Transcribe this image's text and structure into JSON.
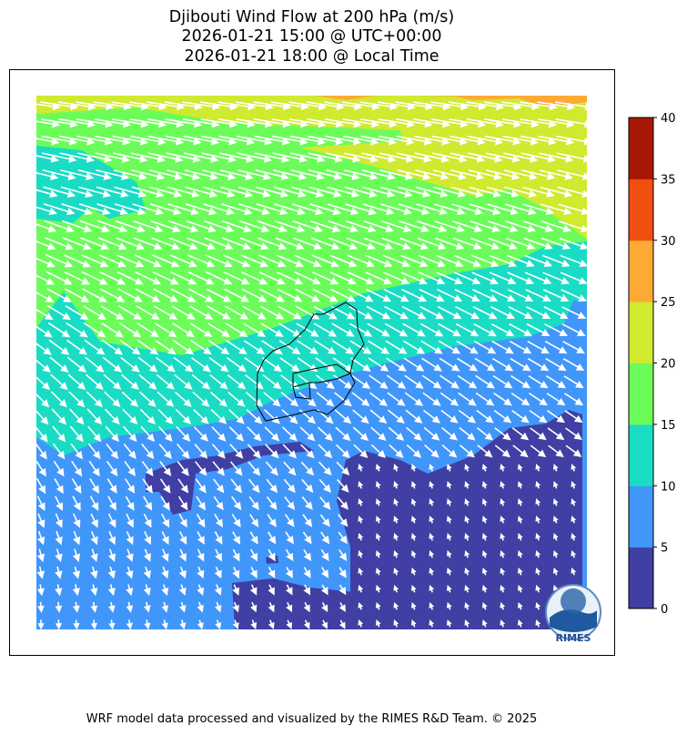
{
  "chart_data": {
    "type": "heatmap",
    "subtype": "filled-contour map with wind vectors",
    "title": [
      "Djibouti Wind Flow at 200 hPa (m/s)",
      "2026-01-21 15:00 @ UTC+00:00",
      "2026-01-21 18:00 @ Local Time"
    ],
    "colorbar": {
      "levels": [
        0,
        5,
        10,
        15,
        20,
        25,
        30,
        35,
        40
      ],
      "tick_labels": [
        "0",
        "5",
        "10",
        "15",
        "20",
        "25",
        "30",
        "35",
        "40"
      ],
      "colors": [
        "#3f3fa4",
        "#4196fa",
        "#1adcc4",
        "#6bfc5a",
        "#cfea2f",
        "#fdaa35",
        "#ef4f10",
        "#a81704"
      ],
      "orientation": "vertical",
      "placement": "right"
    },
    "wind_vectors": {
      "color": "#ffffff",
      "pattern": "east-southeast flow in the north turning to southward flow in the south-west"
    },
    "features": {
      "country_outline": "Djibouti",
      "outline_color": "#000000"
    }
  },
  "logo": {
    "text": "RIMES"
  },
  "footer": "WRF model data processed and visualized by the RIMES R&D Team. © 2025"
}
